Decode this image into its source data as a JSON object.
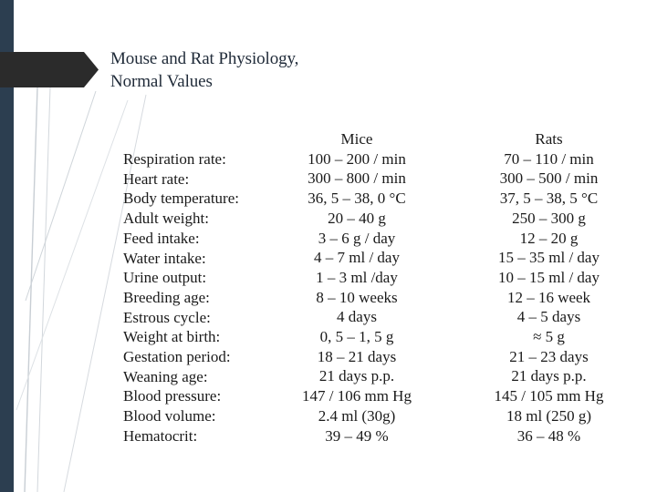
{
  "title": {
    "line1": "Mouse and Rat  Physiology,",
    "line2": "Normal Values"
  },
  "table": {
    "labels": [
      "Respiration rate:",
      "Heart rate:",
      "Body temperature:",
      "Adult weight:",
      "Feed intake:",
      "Water intake:",
      "Urine output:",
      "Breeding age:",
      "Estrous cycle:",
      "Weight at birth:",
      "Gestation period:",
      "Weaning age:",
      "Blood pressure:",
      "Blood volume:",
      "Hematocrit:"
    ],
    "mice_header": "Mice",
    "mice": [
      "100 – 200 / min",
      "300 – 800 / min",
      "36, 5 – 38, 0 °C",
      "20 – 40 g",
      "3 – 6 g / day",
      "4 – 7 ml / day",
      "1 – 3 ml /day",
      "8 – 10 weeks",
      "4 days",
      "0, 5 – 1, 5 g",
      "18 – 21 days",
      "21 days p.p.",
      "147 / 106 mm Hg",
      "2.4 ml  (30g)",
      "39 – 49 %"
    ],
    "rats_header": "Rats",
    "rats": [
      "70 – 110 / min",
      "300 – 500 / min",
      "37, 5 – 38, 5 °C",
      "250 – 300 g",
      "12 – 20 g",
      "15 – 35 ml / day",
      "10 – 15 ml / day",
      "12 – 16 week",
      "4 – 5 days",
      "≈ 5 g",
      "21 – 23 days",
      "21 days p.p.",
      "145 / 105 mm Hg",
      "18 ml  (250 g)",
      "36 – 48 %"
    ]
  }
}
